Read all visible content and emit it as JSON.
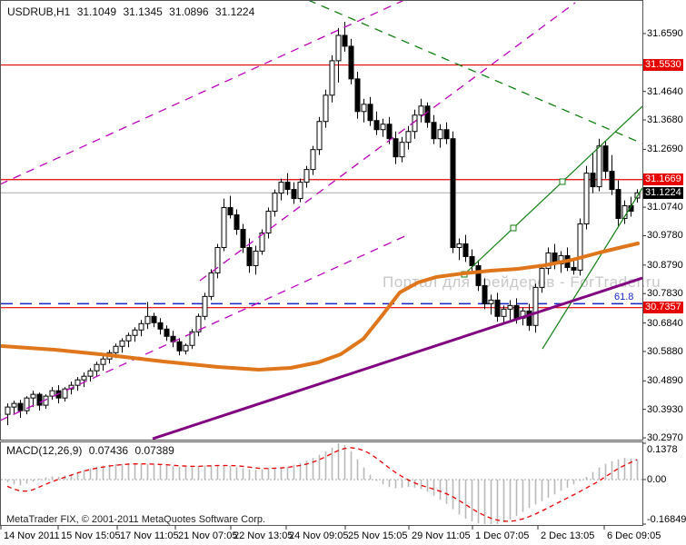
{
  "header": {
    "symbol_timeframe": "USDRUB,H1",
    "open": "31.1049",
    "high": "31.1345",
    "low": "31.0896",
    "close": "31.1224"
  },
  "watermark": "Портал для трейдеров - ForTrader.ru",
  "copyright": "MetaTrader FIX, © 2001-2011 MetaQuotes Software Corp.",
  "colors": {
    "level_red": "#e60000",
    "current_gray": "#b4b4b4",
    "current_badge": "#000000",
    "fib_blue": "#1522c8",
    "magenta": "#bb00bb",
    "green": "#0f7d0f",
    "purple": "#800080",
    "orange": "#e0761c",
    "hist_gray": "#b8b8b8",
    "signal_red": "#e60000",
    "watermark_gray": "#c8c8c8"
  },
  "chart_data": {
    "type": "candlestick",
    "symbol": "USDRUB",
    "timeframe": "H1",
    "title": "USDRUB,H1 31.1049 31.1345 31.0896 31.1224",
    "grid": false,
    "legend_position": "none",
    "y_range": {
      "top": 31.769,
      "bottom": 30.291
    },
    "y_axis_ticks": [
      "31.6590",
      "31.4640",
      "31.3680",
      "31.2690",
      "31.0740",
      "30.9780",
      "30.8790",
      "30.7830",
      "30.6840",
      "30.5880",
      "30.4890",
      "30.3930",
      "30.2970"
    ],
    "price_badges": [
      {
        "label": "31.5530",
        "price": 31.553,
        "type": "red"
      },
      {
        "label": "31.1669",
        "price": 31.1669,
        "type": "red"
      },
      {
        "label": "31.1224",
        "price": 31.1224,
        "type": "current"
      },
      {
        "label": "30.7357",
        "price": 30.7357,
        "type": "red"
      }
    ],
    "hlines": [
      {
        "price": 31.553,
        "color": "#e60000",
        "style": "solid",
        "width": 1.2
      },
      {
        "price": 31.1669,
        "color": "#e60000",
        "style": "solid",
        "width": 1.2
      },
      {
        "price": 30.7357,
        "color": "#e60000",
        "style": "solid",
        "width": 1.2
      },
      {
        "price": 31.1224,
        "color": "#b4b4b4",
        "style": "solid",
        "width": 1.2
      },
      {
        "price": 30.749,
        "color": "#1522c8",
        "style": "dashed",
        "width": 1.5,
        "label": "61.8"
      }
    ],
    "x_axis_labels": [
      {
        "label": "14 Nov 2011",
        "x": 4
      },
      {
        "label": "15 Nov 15:05",
        "x": 67
      },
      {
        "label": "17 Nov 11:05",
        "x": 132
      },
      {
        "label": "21 Nov 07:05",
        "x": 196
      },
      {
        "label": "22 Nov 13:05",
        "x": 257
      },
      {
        "label": "24 Nov 09:05",
        "x": 318
      },
      {
        "label": "25 Nov 15:05",
        "x": 383
      },
      {
        "label": "29 Nov 11:05",
        "x": 453
      },
      {
        "label": "1 Dec 07:05",
        "x": 523
      },
      {
        "label": "2 Dec 13:05",
        "x": 595
      },
      {
        "label": "6 Dec 09:05",
        "x": 668
      }
    ],
    "trendlines": [
      {
        "name": "magenta-channel-upper",
        "color": "#bb00bb",
        "style": "dashed",
        "width": 1.3,
        "x1": 0,
        "y1": 203,
        "x2": 445,
        "y2": 0
      },
      {
        "name": "magenta-channel-lower",
        "color": "#bb00bb",
        "style": "dashed",
        "width": 1.3,
        "x1": 0,
        "y1": 463,
        "x2": 450,
        "y2": 258
      },
      {
        "name": "magenta-trendline-steep",
        "color": "#bb00bb",
        "style": "dashed",
        "width": 1.3,
        "x1": 220,
        "y1": 309,
        "x2": 633,
        "y2": 3
      },
      {
        "name": "green-descending-dashed",
        "color": "#0f7d0f",
        "style": "dashed",
        "width": 1.3,
        "x1": 339,
        "y1": 0,
        "x2": 707,
        "y2": 158
      },
      {
        "name": "green-ascending-main",
        "color": "#0f7d0f",
        "style": "solid",
        "width": 1.2,
        "x1": 511,
        "y1": 302,
        "x2": 707,
        "y2": 117,
        "handles": [
          [
            511,
            302
          ],
          [
            565,
            251
          ],
          [
            619,
            200
          ]
        ]
      },
      {
        "name": "green-ascending-outer",
        "color": "#0f7d0f",
        "style": "solid",
        "width": 1.2,
        "x1": 597,
        "y1": 384,
        "x2": 707,
        "y2": 207
      },
      {
        "name": "purple-support-line",
        "color": "#800080",
        "style": "solid",
        "width": 3,
        "x1": 168,
        "y1": 483,
        "x2": 707,
        "y2": 306
      }
    ],
    "ma_line": {
      "name": "orange-moving-average",
      "color": "#e0761c",
      "width": 4,
      "points": [
        [
          2,
          381
        ],
        [
          60,
          385
        ],
        [
          120,
          391
        ],
        [
          180,
          398
        ],
        [
          240,
          404
        ],
        [
          285,
          407
        ],
        [
          320,
          405
        ],
        [
          350,
          399
        ],
        [
          375,
          390
        ],
        [
          400,
          373
        ],
        [
          420,
          348
        ],
        [
          440,
          322
        ],
        [
          460,
          311
        ],
        [
          480,
          305
        ],
        [
          510,
          301
        ],
        [
          540,
          298
        ],
        [
          570,
          296
        ],
        [
          600,
          292
        ],
        [
          630,
          286
        ],
        [
          660,
          278
        ],
        [
          685,
          272
        ],
        [
          702,
          268
        ]
      ]
    },
    "candles": [
      [
        30.3764,
        30.413,
        30.3397,
        30.4008
      ],
      [
        30.4008,
        30.4222,
        30.3794,
        30.413
      ],
      [
        30.413,
        30.4252,
        30.3642,
        30.3886
      ],
      [
        30.3886,
        30.4375,
        30.3764,
        30.4313
      ],
      [
        30.4313,
        30.4558,
        30.4008,
        30.4436
      ],
      [
        30.4436,
        30.4497,
        30.3886,
        30.4069
      ],
      [
        30.4069,
        30.4436,
        30.3947,
        30.4375
      ],
      [
        30.4375,
        30.468,
        30.4252,
        30.4558
      ],
      [
        30.4558,
        30.4741,
        30.413,
        30.4313
      ],
      [
        30.4313,
        30.468,
        30.4191,
        30.4619
      ],
      [
        30.4619,
        30.4863,
        30.4436,
        30.4741
      ],
      [
        30.4741,
        30.5016,
        30.4558,
        30.4924
      ],
      [
        30.4924,
        30.5169,
        30.468,
        30.5046
      ],
      [
        30.5046,
        30.5321,
        30.4863,
        30.523
      ],
      [
        30.523,
        30.5535,
        30.5046,
        30.5443
      ],
      [
        30.5443,
        30.5718,
        30.523,
        30.5627
      ],
      [
        30.5627,
        30.5932,
        30.5474,
        30.584
      ],
      [
        30.584,
        30.6146,
        30.5657,
        30.6054
      ],
      [
        30.6054,
        30.6329,
        30.584,
        30.6238
      ],
      [
        30.6238,
        30.6512,
        30.6024,
        30.6421
      ],
      [
        30.6421,
        30.6696,
        30.6207,
        30.6604
      ],
      [
        30.6604,
        30.694,
        30.639,
        30.6818
      ],
      [
        30.6818,
        30.7551,
        30.6635,
        30.7062
      ],
      [
        30.7062,
        30.7184,
        30.6696,
        30.6848
      ],
      [
        30.6848,
        30.7001,
        30.6451,
        30.6635
      ],
      [
        30.6635,
        30.6757,
        30.6238,
        30.639
      ],
      [
        30.639,
        30.6573,
        30.6024,
        30.6207
      ],
      [
        30.6207,
        30.6329,
        30.5749,
        30.5901
      ],
      [
        30.5901,
        30.6146,
        30.5779,
        30.6085
      ],
      [
        30.6085,
        30.6635,
        30.5963,
        30.6543
      ],
      [
        30.6543,
        30.7154,
        30.639,
        30.7062
      ],
      [
        30.7062,
        30.7856,
        30.694,
        30.7734
      ],
      [
        30.7734,
        30.865,
        30.7612,
        30.8528
      ],
      [
        30.8528,
        30.9505,
        30.8345,
        30.9383
      ],
      [
        30.9383,
        31.1032,
        30.9261,
        31.0727
      ],
      [
        31.0727,
        31.1124,
        31.036,
        31.0482
      ],
      [
        31.0482,
        31.0666,
        30.9811,
        30.9994
      ],
      [
        30.9994,
        31.0177,
        30.92,
        30.9383
      ],
      [
        30.9383,
        30.9688,
        30.8528,
        30.8772
      ],
      [
        30.8772,
        30.9444,
        30.8467,
        30.9261
      ],
      [
        30.9261,
        30.9994,
        30.9139,
        30.9872
      ],
      [
        30.9872,
        31.0727,
        30.9688,
        31.0604
      ],
      [
        31.0604,
        31.1338,
        31.0421,
        31.1216
      ],
      [
        31.1216,
        31.1704,
        31.0971,
        31.1582
      ],
      [
        31.1582,
        31.1887,
        31.1154,
        31.1338
      ],
      [
        31.1338,
        31.1582,
        31.0849,
        31.1032
      ],
      [
        31.1032,
        31.1704,
        31.091,
        31.1582
      ],
      [
        31.1582,
        31.2132,
        31.1399,
        31.201
      ],
      [
        31.201,
        31.2804,
        31.1826,
        31.2681
      ],
      [
        31.2681,
        31.3781,
        31.2498,
        31.3628
      ],
      [
        31.3628,
        31.4697,
        31.3414,
        31.4514
      ],
      [
        31.4514,
        31.5858,
        31.427,
        31.5674
      ],
      [
        31.5674,
        31.6774,
        31.4941,
        31.6529
      ],
      [
        31.6529,
        31.6988,
        31.598,
        31.6163
      ],
      [
        31.6163,
        31.6407,
        31.488,
        31.5063
      ],
      [
        31.5063,
        31.5308,
        31.372,
        31.3964
      ],
      [
        31.3964,
        31.4392,
        31.3598,
        31.4208
      ],
      [
        31.4208,
        31.4453,
        31.3475,
        31.3659
      ],
      [
        31.3659,
        31.3964,
        31.317,
        31.3353
      ],
      [
        31.3353,
        31.372,
        31.3109,
        31.3536
      ],
      [
        31.3536,
        31.3781,
        31.2865,
        31.3048
      ],
      [
        31.3048,
        31.3292,
        31.2193,
        31.2437
      ],
      [
        31.2437,
        31.3109,
        31.2254,
        31.2926
      ],
      [
        31.2926,
        31.3475,
        31.2681,
        31.3292
      ],
      [
        31.3292,
        31.4025,
        31.3048,
        31.3842
      ],
      [
        31.3842,
        31.4392,
        31.3598,
        31.4147
      ],
      [
        31.4147,
        31.427,
        31.3414,
        31.3598
      ],
      [
        31.3598,
        31.3842,
        31.2865,
        31.3048
      ],
      [
        31.3048,
        31.3536,
        31.2743,
        31.3353
      ],
      [
        31.3353,
        31.3598,
        31.2865,
        31.3048
      ],
      [
        31.3048,
        31.3292,
        30.92,
        30.9383
      ],
      [
        30.9383,
        30.9688,
        30.8956,
        30.9505
      ],
      [
        30.9505,
        30.9811,
        30.8895,
        30.9078
      ],
      [
        30.9078,
        30.9322,
        30.8589,
        30.8772
      ],
      [
        30.8772,
        30.8956,
        30.7917,
        30.81
      ],
      [
        30.81,
        30.8345,
        30.7306,
        30.7489
      ],
      [
        30.7489,
        30.7795,
        30.7123,
        30.7612
      ],
      [
        30.7612,
        30.7856,
        30.6879,
        30.7062
      ],
      [
        30.7062,
        30.7428,
        30.6818,
        30.7306
      ],
      [
        30.7306,
        30.7612,
        30.694,
        30.7428
      ],
      [
        30.7428,
        30.7673,
        30.6818,
        30.7001
      ],
      [
        30.7001,
        30.7367,
        30.6757,
        30.7245
      ],
      [
        30.7245,
        30.7489,
        30.6573,
        30.6757
      ],
      [
        30.6757,
        30.8162,
        30.6512,
        30.8039
      ],
      [
        30.8039,
        30.8833,
        30.7856,
        30.8681
      ],
      [
        30.8681,
        30.9383,
        30.8467,
        30.92
      ],
      [
        30.92,
        30.9505,
        30.865,
        30.8833
      ],
      [
        30.8833,
        30.9261,
        30.8528,
        30.9108
      ],
      [
        30.9108,
        30.9383,
        30.8589,
        30.8711
      ],
      [
        30.8711,
        30.8956,
        30.8467,
        30.862
      ],
      [
        30.862,
        31.036,
        30.8436,
        31.0177
      ],
      [
        31.0177,
        31.2132,
        30.9994,
        31.1887
      ],
      [
        31.1887,
        31.2559,
        31.1216,
        31.1429
      ],
      [
        31.1429,
        31.3048,
        31.1277,
        31.2804
      ],
      [
        31.2804,
        31.2957,
        31.1704,
        31.1948
      ],
      [
        31.1948,
        31.2498,
        31.1154,
        31.1338
      ],
      [
        31.1338,
        31.1643,
        31.0116,
        31.036
      ],
      [
        31.036,
        31.0971,
        31.0177,
        31.0788
      ],
      [
        31.0788,
        31.1093,
        31.0421,
        31.0604
      ],
      [
        31.1049,
        31.1345,
        31.0896,
        31.1224
      ]
    ],
    "macd": {
      "label": "MACD(12,26,9)",
      "value_main": "0.07436",
      "value_signal": "0.07389",
      "range": {
        "max": 0.1378,
        "min": -0.16849
      },
      "axis_labels": [
        {
          "label": "0.1378",
          "value": 0.1378
        },
        {
          "label": "0.00",
          "value": 0.0
        },
        {
          "label": "-0.16849",
          "value": -0.16849
        }
      ],
      "histogram": [
        -0.01,
        -0.018,
        -0.022,
        -0.015,
        -0.008,
        0.004,
        0.008,
        0.012,
        0.01,
        0.015,
        0.02,
        0.028,
        0.035,
        0.042,
        0.048,
        0.052,
        0.055,
        0.057,
        0.058,
        0.06,
        0.059,
        0.057,
        0.058,
        0.056,
        0.054,
        0.052,
        0.05,
        0.048,
        0.047,
        0.048,
        0.05,
        0.052,
        0.053,
        0.054,
        0.052,
        0.05,
        0.046,
        0.042,
        0.038,
        0.036,
        0.038,
        0.042,
        0.045,
        0.044,
        0.048,
        0.055,
        0.062,
        0.07,
        0.08,
        0.092,
        0.105,
        0.118,
        0.135,
        0.128,
        0.105,
        0.075,
        0.045,
        0.018,
        -0.005,
        -0.018,
        -0.028,
        -0.032,
        -0.03,
        -0.028,
        -0.03,
        -0.035,
        -0.045,
        -0.06,
        -0.075,
        -0.09,
        -0.11,
        -0.13,
        -0.145,
        -0.155,
        -0.162,
        -0.167,
        -0.168,
        -0.165,
        -0.158,
        -0.148,
        -0.135,
        -0.12,
        -0.105,
        -0.092,
        -0.08,
        -0.068,
        -0.055,
        -0.042,
        -0.03,
        -0.018,
        -0.005,
        0.01,
        0.028,
        0.045,
        0.058,
        0.068,
        0.075,
        0.08,
        0.078,
        0.0744
      ],
      "signal": [
        -0.025,
        -0.035,
        -0.042,
        -0.043,
        -0.038,
        -0.028,
        -0.018,
        -0.008,
        0.0,
        0.008,
        0.016,
        0.024,
        0.031,
        0.037,
        0.042,
        0.046,
        0.05,
        0.053,
        0.055,
        0.057,
        0.058,
        0.058,
        0.058,
        0.057,
        0.056,
        0.055,
        0.053,
        0.051,
        0.05,
        0.049,
        0.049,
        0.05,
        0.051,
        0.052,
        0.052,
        0.052,
        0.051,
        0.049,
        0.046,
        0.043,
        0.041,
        0.041,
        0.042,
        0.043,
        0.045,
        0.048,
        0.052,
        0.057,
        0.064,
        0.073,
        0.084,
        0.096,
        0.107,
        0.115,
        0.118,
        0.115,
        0.108,
        0.096,
        0.08,
        0.062,
        0.044,
        0.027,
        0.012,
        -0.001,
        -0.012,
        -0.021,
        -0.028,
        -0.035,
        -0.043,
        -0.052,
        -0.063,
        -0.077,
        -0.092,
        -0.107,
        -0.121,
        -0.133,
        -0.143,
        -0.15,
        -0.154,
        -0.155,
        -0.152,
        -0.146,
        -0.138,
        -0.128,
        -0.117,
        -0.105,
        -0.093,
        -0.081,
        -0.069,
        -0.057,
        -0.045,
        -0.032,
        -0.019,
        -0.006,
        0.01,
        0.025,
        0.04,
        0.052,
        0.063,
        0.0739
      ]
    }
  }
}
